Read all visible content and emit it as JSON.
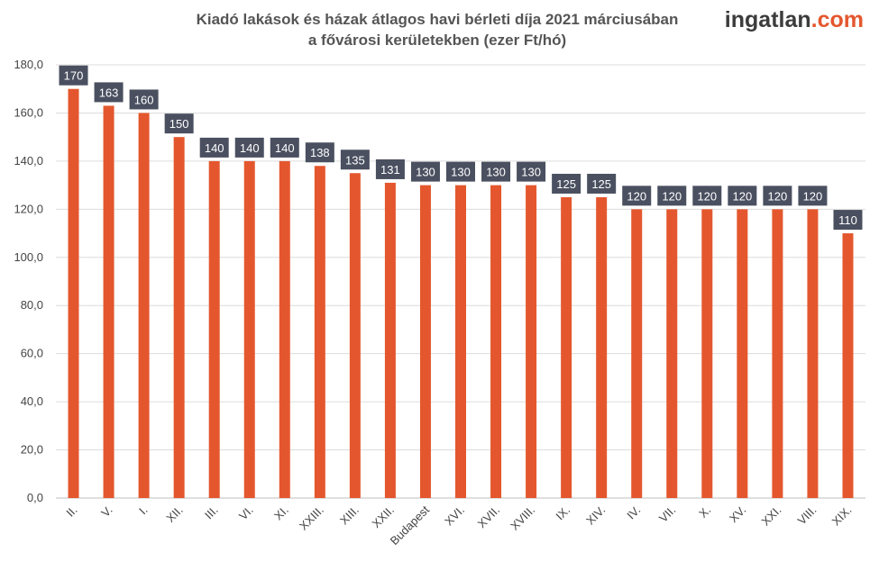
{
  "chart_data": {
    "type": "bar",
    "title_lines": [
      "Kiadó lakások és házak átlagos havi bérleti díja 2021 márciusában",
      "a fővárosi kerületekben (ezer Ft/hó)"
    ],
    "categories": [
      "II.",
      "V.",
      "I.",
      "XII.",
      "III.",
      "VI.",
      "XI.",
      "XXIII.",
      "XIII.",
      "XXII.",
      "Budapest",
      "XVI.",
      "XVII.",
      "XVIII.",
      "IX.",
      "XIV.",
      "IV.",
      "VII.",
      "X.",
      "XV.",
      "XXI.",
      "VIII.",
      "XIX."
    ],
    "values": [
      170,
      163,
      160,
      150,
      140,
      140,
      140,
      138,
      135,
      131,
      130,
      130,
      130,
      130,
      125,
      125,
      120,
      120,
      120,
      120,
      120,
      120,
      110
    ],
    "ylim": [
      0,
      180
    ],
    "y_ticks": [
      "0,0",
      "20,0",
      "40,0",
      "60,0",
      "80,0",
      "100,0",
      "120,0",
      "140,0",
      "160,0",
      "180,0"
    ],
    "xlabel": "",
    "ylabel": "",
    "grid": true,
    "bar_color": "#e4572e",
    "label_box_color": "#4a5060"
  },
  "brand": {
    "name": "ingatlan",
    "tld": ".com",
    "name_color": "#3c3c3c",
    "tld_color": "#e4572e"
  }
}
